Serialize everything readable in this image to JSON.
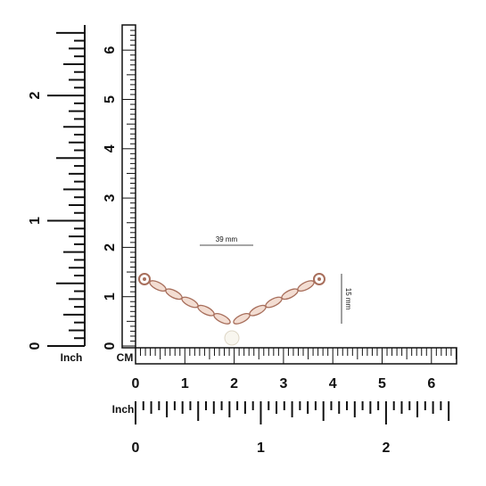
{
  "vertical_inch_ruler": {
    "unit": "Inch",
    "labels": [
      "0",
      "1",
      "2"
    ]
  },
  "vertical_cm_ruler": {
    "labels": [
      "0",
      "1",
      "2",
      "3",
      "4",
      "5",
      "6"
    ]
  },
  "horizontal_cm_ruler": {
    "unit": "CM",
    "labels": [
      "0",
      "1",
      "2",
      "3",
      "4",
      "5",
      "6"
    ]
  },
  "horizontal_inch_ruler": {
    "unit": "Inch",
    "labels": [
      "0",
      "1",
      "2"
    ]
  },
  "dimensions": {
    "width": "39 mm",
    "height": "15 mm"
  }
}
